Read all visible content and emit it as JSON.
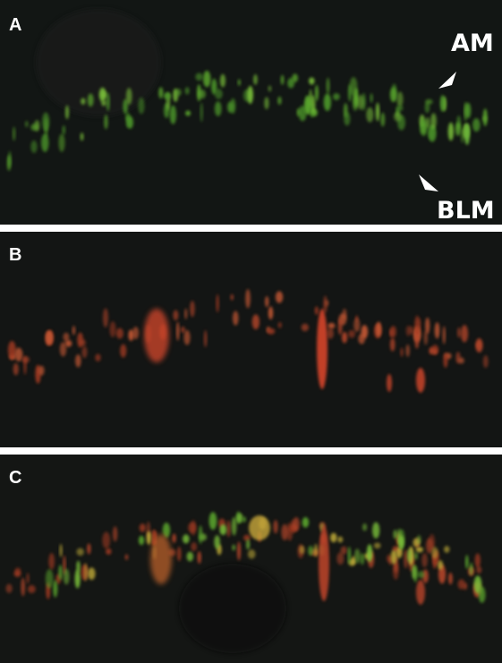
{
  "panels": [
    {
      "label": "A",
      "annotations": [
        "AM",
        "BLM"
      ]
    },
    {
      "label": "B"
    },
    {
      "label": "C"
    }
  ]
}
